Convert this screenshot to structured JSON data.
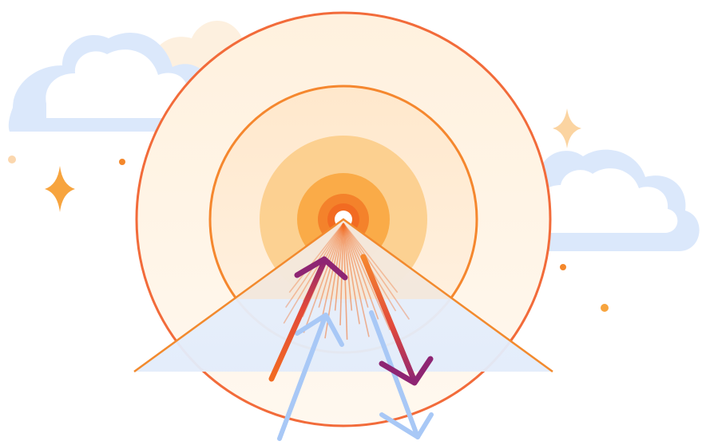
{
  "colors": {
    "background": "#ffffff",
    "cloud_blue_light": "#dbe8fb",
    "cloud_blue_outline": "#cfe0fb",
    "cloud_cream": "#fdf0df",
    "cloud_white": "#ffffff",
    "sun_halo_outer": "#fff2e2",
    "sun_halo_inner": "#fde6c9",
    "orange_ring_outer": "#f26b3a",
    "orange_ring_inner": "#f5872e",
    "sun_core_1": "#fccb85",
    "sun_core_2": "#f9a43b",
    "sun_core_3": "#f4822b",
    "ground_blue": "#e5eefc",
    "ground_edge": "#f28a2e",
    "arrow_blue": "#a8c8f6",
    "arrow_purple": "#8e2573",
    "arrow_orange": "#f26b22",
    "sparkle_orange": "#f7a43e",
    "sparkle_pale": "#fbd4a1",
    "dot_orange": "#f4872b",
    "dot_pale": "#fbd7ae"
  },
  "icons": {
    "left_cloud": "cloud-icon",
    "right_cloud": "cloud-icon",
    "sun": "sun-icon",
    "arrows": "arrow-icon",
    "sparkles": "sparkle-icon"
  }
}
